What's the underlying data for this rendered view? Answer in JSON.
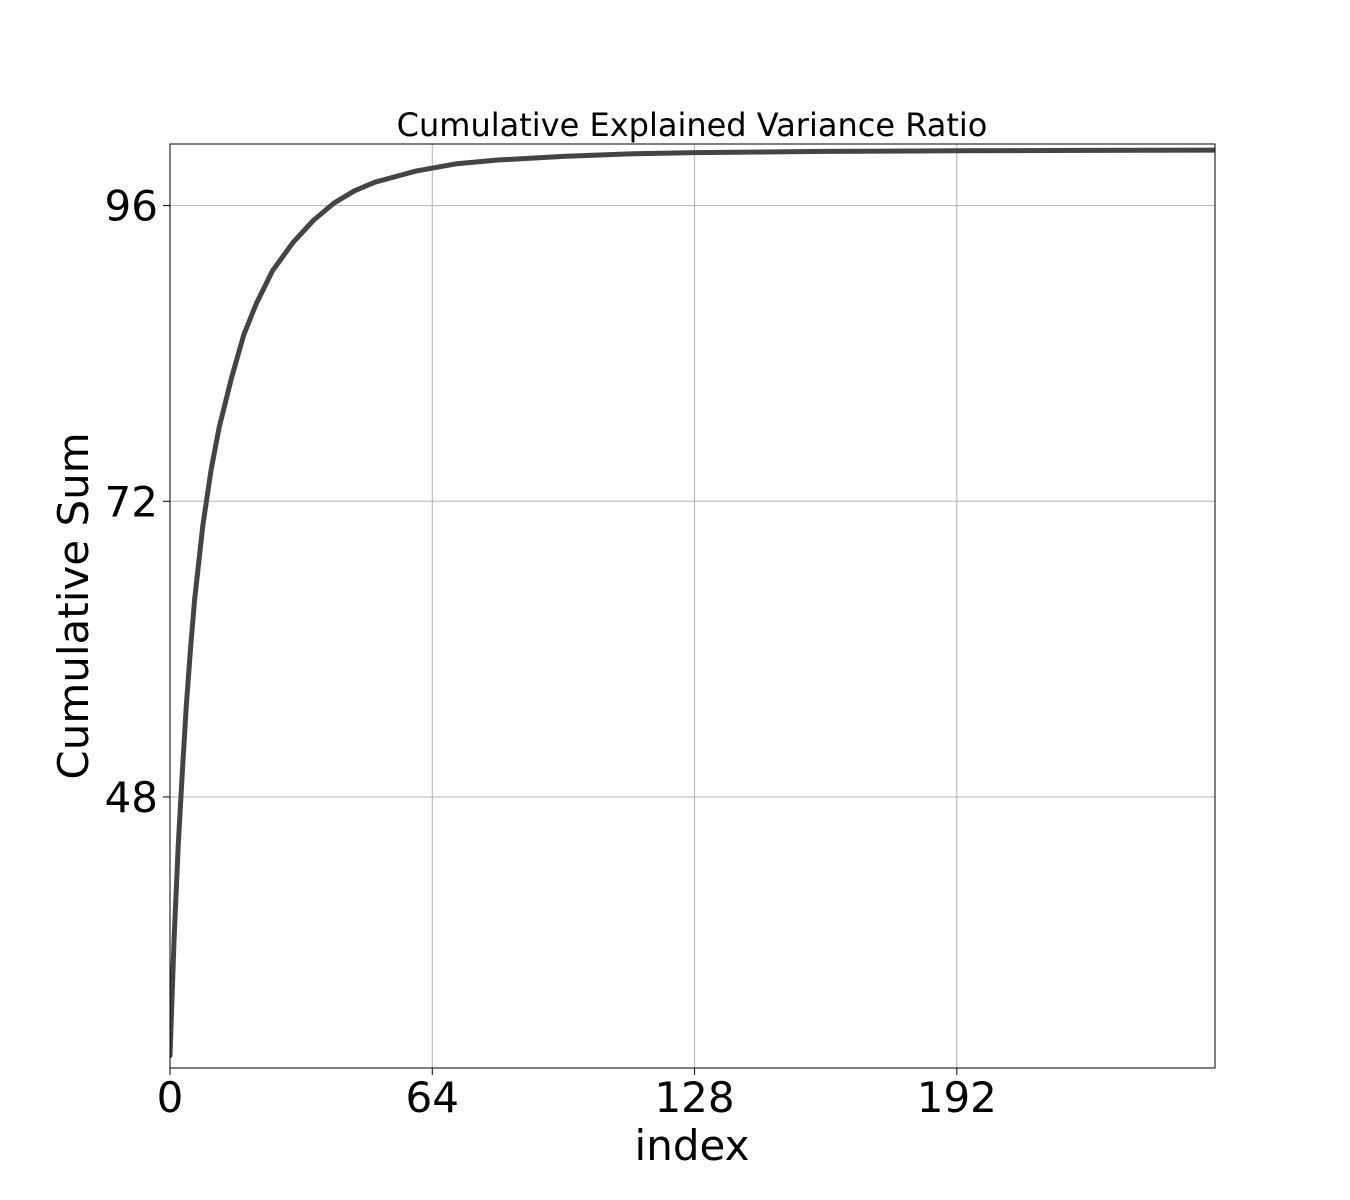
{
  "chart_data": {
    "type": "line",
    "title": "Cumulative Explained Variance Ratio",
    "xlabel": "index",
    "ylabel": "Cumulative Sum",
    "xlim": [
      0,
      255
    ],
    "ylim": [
      26,
      101
    ],
    "xticks": [
      0,
      64,
      128,
      192
    ],
    "xtick_labels": [
      "0",
      "64",
      "128",
      "192"
    ],
    "yticks": [
      48,
      72,
      96
    ],
    "ytick_labels": [
      "48",
      "72",
      "96"
    ],
    "grid": true,
    "legend": "none",
    "series": [
      {
        "color": "#444444",
        "x": [
          0,
          1,
          2,
          3,
          4,
          5,
          6,
          8,
          10,
          12,
          15,
          18,
          21,
          25,
          30,
          35,
          40,
          45,
          50,
          60,
          70,
          80,
          96,
          112,
          128,
          160,
          192,
          224,
          255
        ],
        "y": [
          27.0,
          36.5,
          44.0,
          50.0,
          55.5,
          60.0,
          64.0,
          70.0,
          74.5,
          78.0,
          82.0,
          85.5,
          88.0,
          90.7,
          93.0,
          94.8,
          96.2,
          97.2,
          97.9,
          98.8,
          99.4,
          99.7,
          100.0,
          100.2,
          100.3,
          100.4,
          100.45,
          100.48,
          100.5
        ]
      }
    ]
  }
}
